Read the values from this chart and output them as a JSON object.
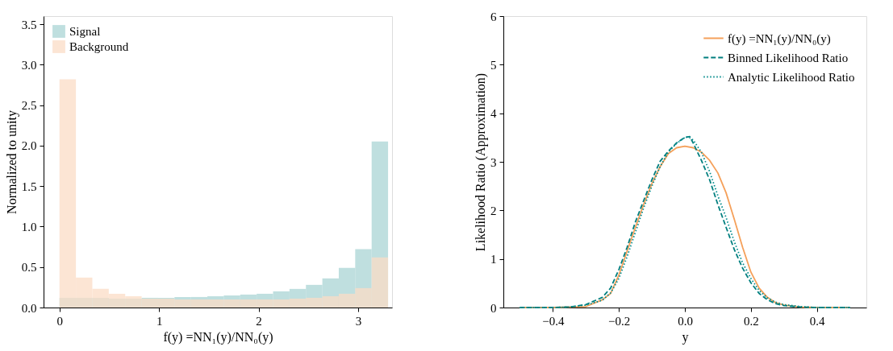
{
  "chart_data": [
    {
      "type": "histogram",
      "xlabel": "f(y) =NN₁(y)/NN₀(y)",
      "ylabel": "Normalized to unity",
      "legend": "top left",
      "bins": [
        0,
        0.165,
        0.33,
        0.495,
        0.66,
        0.825,
        0.99,
        1.155,
        1.32,
        1.485,
        1.65,
        1.815,
        1.98,
        2.145,
        2.31,
        2.475,
        2.64,
        2.805,
        2.97,
        3.135,
        3.3
      ],
      "series": [
        {
          "name": "Signal",
          "color": "#a9d4d4",
          "values": [
            0.12,
            0.12,
            0.12,
            0.11,
            0.11,
            0.12,
            0.12,
            0.13,
            0.13,
            0.14,
            0.15,
            0.16,
            0.17,
            0.2,
            0.23,
            0.28,
            0.36,
            0.49,
            0.72,
            2.05
          ]
        },
        {
          "name": "Background",
          "color": "#fbdcc6",
          "values": [
            2.82,
            0.37,
            0.23,
            0.17,
            0.14,
            0.11,
            0.11,
            0.1,
            0.1,
            0.1,
            0.1,
            0.1,
            0.1,
            0.1,
            0.11,
            0.12,
            0.14,
            0.17,
            0.24,
            0.62
          ]
        }
      ],
      "xlim": [
        -0.16,
        3.34
      ],
      "xticks": [
        0,
        1,
        2,
        3
      ],
      "ylim": [
        0,
        3.6
      ],
      "yticks": [
        {
          "value": 0,
          "label": "0.0"
        },
        {
          "value": 0.5,
          "label": "0.5"
        },
        {
          "value": 1,
          "label": "1.0"
        },
        {
          "value": 1.5,
          "label": "1.5"
        },
        {
          "value": 2,
          "label": "2.0"
        },
        {
          "value": 2.5,
          "label": "2.5"
        },
        {
          "value": 3,
          "label": "3.0"
        },
        {
          "value": 3.5,
          "label": "3.5"
        }
      ],
      "grid": false
    },
    {
      "type": "line",
      "xlabel": "y",
      "ylabel": "Likelihood Ratio (Approximation)",
      "legend": "top right",
      "series": [
        {
          "name": "f(y) =NN₁(y)/NN₀(y)",
          "color": "#f5a05a",
          "line_style": "solid",
          "x": [
            -0.5,
            -0.4,
            -0.35,
            -0.3,
            -0.25,
            -0.225,
            -0.2,
            -0.175,
            -0.15,
            -0.125,
            -0.1,
            -0.075,
            -0.05,
            -0.025,
            0,
            0.025,
            0.05,
            0.075,
            0.1,
            0.125,
            0.15,
            0.175,
            0.2,
            0.225,
            0.25,
            0.275,
            0.3,
            0.35,
            0.4,
            0.5
          ],
          "values": [
            0,
            0,
            0.01,
            0.02,
            0.16,
            0.29,
            0.67,
            1.16,
            1.65,
            2.12,
            2.55,
            2.9,
            3.17,
            3.29,
            3.32,
            3.29,
            3.2,
            3.03,
            2.77,
            2.36,
            1.81,
            1.24,
            0.73,
            0.4,
            0.21,
            0.1,
            0.05,
            0.01,
            0,
            0
          ]
        },
        {
          "name": "Binned Likelihood Ratio",
          "color": "#007f7f",
          "line_style": "dashed",
          "x": [
            -0.5,
            -0.4,
            -0.35,
            -0.3,
            -0.25,
            -0.225,
            -0.2,
            -0.175,
            -0.15,
            -0.125,
            -0.1,
            -0.075,
            -0.05,
            -0.025,
            0,
            0.015,
            0.025,
            0.05,
            0.075,
            0.1,
            0.125,
            0.15,
            0.175,
            0.2,
            0.225,
            0.25,
            0.275,
            0.3,
            0.35,
            0.4,
            0.5
          ],
          "values": [
            0,
            0,
            0.01,
            0.06,
            0.21,
            0.4,
            0.78,
            1.24,
            1.76,
            2.2,
            2.63,
            3.01,
            3.22,
            3.39,
            3.5,
            3.52,
            3.39,
            3.03,
            2.63,
            2.12,
            1.65,
            1.19,
            0.81,
            0.51,
            0.29,
            0.16,
            0.08,
            0.04,
            0.01,
            0,
            0
          ]
        },
        {
          "name": "Analytic Likelihood Ratio",
          "color": "#008b8b",
          "line_style": "dotted",
          "x": [
            -0.5,
            -0.4,
            -0.35,
            -0.3,
            -0.25,
            -0.225,
            -0.2,
            -0.175,
            -0.15,
            -0.125,
            -0.1,
            -0.075,
            -0.05,
            -0.025,
            0,
            0.01,
            0.025,
            0.05,
            0.075,
            0.1,
            0.125,
            0.15,
            0.175,
            0.2,
            0.225,
            0.25,
            0.275,
            0.3,
            0.35,
            0.4,
            0.5
          ],
          "values": [
            0,
            0,
            0.01,
            0.05,
            0.15,
            0.3,
            0.6,
            1.05,
            1.55,
            2.05,
            2.5,
            2.9,
            3.2,
            3.38,
            3.5,
            3.52,
            3.45,
            3.2,
            2.8,
            2.3,
            1.85,
            1.35,
            0.92,
            0.6,
            0.35,
            0.2,
            0.11,
            0.06,
            0.02,
            0,
            0
          ]
        }
      ],
      "xlim": [
        -0.55,
        0.55
      ],
      "xticks": [
        {
          "value": -0.4,
          "label": "−0.4"
        },
        {
          "value": -0.2,
          "label": "−0.2"
        },
        {
          "value": 0,
          "label": "0.0"
        },
        {
          "value": 0.2,
          "label": "0.2"
        },
        {
          "value": 0.4,
          "label": "0.4"
        }
      ],
      "ylim": [
        0,
        6
      ],
      "yticks": [
        0,
        1,
        2,
        3,
        4,
        5,
        6
      ],
      "grid": false
    }
  ]
}
